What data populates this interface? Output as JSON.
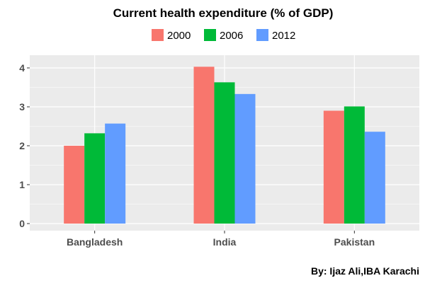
{
  "chart_data": {
    "type": "bar",
    "title": "Current health expenditure (% of GDP)",
    "categories": [
      "Bangladesh",
      "India",
      "Pakistan"
    ],
    "series": [
      {
        "name": "2000",
        "color": "#F8766D",
        "values": [
          2.0,
          4.03,
          2.9
        ]
      },
      {
        "name": "2006",
        "color": "#00BA38",
        "values": [
          2.32,
          3.63,
          3.01
        ]
      },
      {
        "name": "2012",
        "color": "#619CFF",
        "values": [
          2.57,
          3.33,
          2.36
        ]
      }
    ],
    "yticks": [
      0,
      1,
      2,
      3,
      4
    ],
    "ylim": [
      -0.2,
      4.3
    ],
    "xlabel": "",
    "ylabel": "",
    "grid": true,
    "legend_position": "top",
    "panel_background": "#EBEBEB",
    "caption": "By: Ijaz Ali,IBA Karachi"
  }
}
